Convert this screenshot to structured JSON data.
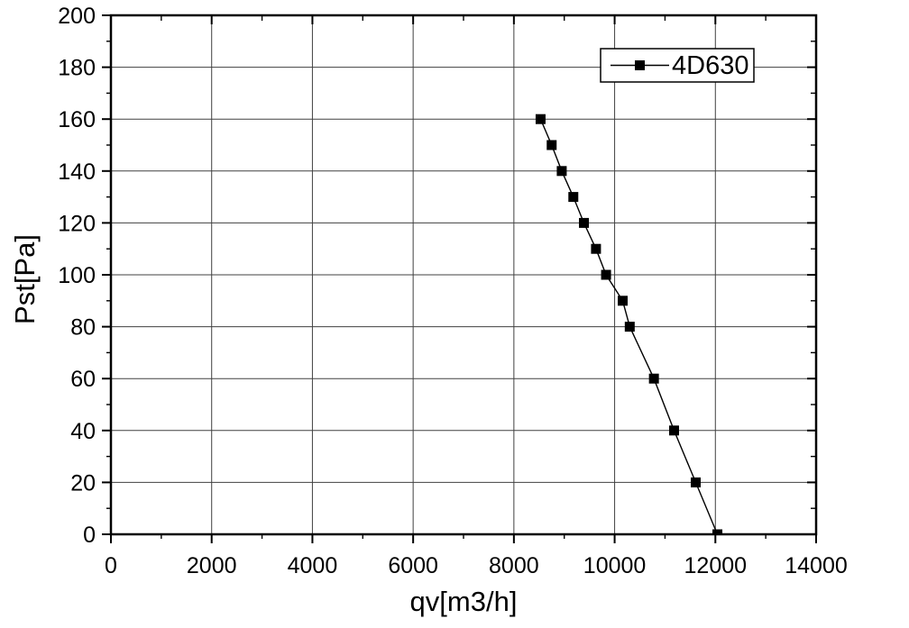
{
  "chart_data": {
    "type": "line",
    "title": "",
    "xlabel": "qv[m3/h]",
    "ylabel": "Pst[Pa]",
    "xlim": [
      0,
      14000
    ],
    "ylim": [
      0,
      200
    ],
    "x_major_ticks": [
      0,
      2000,
      4000,
      6000,
      8000,
      10000,
      12000,
      14000
    ],
    "y_major_ticks": [
      0,
      20,
      40,
      60,
      80,
      100,
      120,
      140,
      160,
      180,
      200
    ],
    "x_minor_step": 1000,
    "y_minor_step": 10,
    "grid": "major-both-solid",
    "legend": {
      "position": "top-right",
      "label": "4D630",
      "marker": "filled-square",
      "line_style": "solid"
    },
    "series": [
      {
        "name": "4D630",
        "marker": "filled-square",
        "line_style": "solid",
        "color": "#000000",
        "points": [
          [
            8530,
            160
          ],
          [
            8750,
            150
          ],
          [
            8950,
            140
          ],
          [
            9180,
            130
          ],
          [
            9390,
            120
          ],
          [
            9630,
            110
          ],
          [
            9830,
            100
          ],
          [
            10160,
            90
          ],
          [
            10300,
            80
          ],
          [
            10780,
            60
          ],
          [
            11180,
            40
          ],
          [
            11610,
            20
          ],
          [
            12040,
            0
          ]
        ]
      }
    ]
  },
  "colors": {
    "background": "#ffffff",
    "axis": "#000000",
    "grid": "#404040",
    "text": "#000000",
    "series": "#000000"
  }
}
